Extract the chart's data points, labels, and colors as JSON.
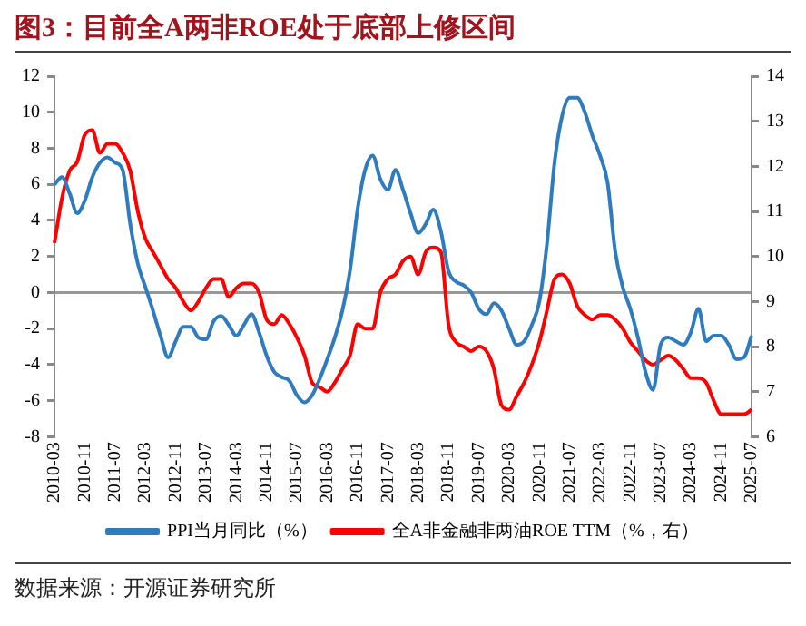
{
  "chart_data": {
    "type": "line",
    "title": "图3：目前全A两非ROE处于底部上修区间",
    "annotations": [
      "数据来源：开源证券研究所"
    ],
    "categories": [
      "2010-03",
      null,
      null,
      null,
      "2010-11",
      null,
      null,
      null,
      "2011-07",
      null,
      null,
      null,
      "2012-03",
      null,
      null,
      null,
      "2012-11",
      null,
      null,
      null,
      "2013-07",
      null,
      null,
      null,
      "2014-03",
      null,
      null,
      null,
      "2014-11",
      null,
      null,
      null,
      "2015-07",
      null,
      null,
      null,
      "2016-03",
      null,
      null,
      null,
      "2016-11",
      null,
      null,
      null,
      "2017-07",
      null,
      null,
      null,
      "2018-03",
      null,
      null,
      null,
      "2018-11",
      null,
      null,
      null,
      "2019-07",
      null,
      null,
      null,
      "2020-03",
      null,
      null,
      null,
      "2020-11",
      null,
      null,
      null,
      "2021-07",
      null,
      null,
      null,
      "2022-03",
      null,
      null,
      null,
      "2022-11",
      null,
      null,
      null,
      "2023-07",
      null,
      null,
      null,
      "2024-03",
      null,
      null,
      null,
      "2024-11",
      null,
      null,
      null,
      "2025-07"
    ],
    "series": [
      {
        "name": "PPI当月同比（%）",
        "color": "#2e7bbf",
        "values": [
          6.0,
          6.4,
          5.5,
          4.4,
          5.1,
          6.4,
          7.2,
          7.5,
          7.2,
          6.8,
          3.8,
          1.6,
          0.3,
          -1.0,
          -2.4,
          -3.6,
          -2.7,
          -1.9,
          -1.9,
          -2.5,
          -2.6,
          -1.6,
          -1.3,
          -1.8,
          -2.4,
          -1.8,
          -1.2,
          -2.2,
          -3.5,
          -4.4,
          -4.7,
          -4.9,
          -5.7,
          -6.1,
          -5.7,
          -4.8,
          -3.7,
          -2.5,
          -1.0,
          1.2,
          4.6,
          6.8,
          7.6,
          6.3,
          5.7,
          6.8,
          5.7,
          4.4,
          3.3,
          3.8,
          4.6,
          3.4,
          1.2,
          0.6,
          0.4,
          0.0,
          -0.9,
          -1.2,
          -0.6,
          -1.0,
          -2.0,
          -2.9,
          -2.7,
          -1.8,
          -0.5,
          2.7,
          7.2,
          9.8,
          10.8,
          10.8,
          10.0,
          8.7,
          7.6,
          6.1,
          2.3,
          0.3,
          -0.9,
          -2.5,
          -4.4,
          -5.4,
          -2.9,
          -2.5,
          -2.7,
          -2.9,
          -2.2,
          -0.9,
          -2.7,
          -2.4,
          -2.4,
          -2.9,
          -3.7,
          -3.6,
          -2.4
        ]
      },
      {
        "name": "全A非金融非两油ROE TTM（%，右）",
        "color": "#ff0000",
        "axis": "y2",
        "values": [
          10.3,
          11.3,
          11.9,
          12.1,
          12.7,
          12.8,
          12.3,
          12.5,
          12.5,
          12.3,
          11.9,
          11.0,
          10.4,
          10.1,
          9.8,
          9.5,
          9.3,
          9.0,
          8.8,
          9.0,
          9.3,
          9.5,
          9.5,
          9.1,
          9.3,
          9.4,
          9.4,
          9.2,
          8.6,
          8.5,
          8.7,
          8.5,
          8.2,
          7.8,
          7.2,
          7.1,
          7.0,
          7.2,
          7.5,
          7.8,
          8.5,
          8.4,
          8.4,
          9.2,
          9.5,
          9.6,
          9.9,
          10.0,
          9.6,
          10.1,
          10.2,
          10.1,
          8.5,
          8.1,
          8.0,
          7.9,
          8.0,
          7.9,
          7.5,
          6.7,
          6.6,
          6.9,
          7.2,
          7.6,
          8.1,
          8.8,
          9.5,
          9.6,
          9.4,
          8.9,
          8.7,
          8.6,
          8.7,
          8.7,
          8.6,
          8.4,
          8.1,
          7.9,
          7.7,
          7.6,
          7.7,
          7.8,
          7.7,
          7.5,
          7.3,
          7.3,
          7.2,
          6.8,
          6.5,
          6.5,
          6.5,
          6.5,
          6.6
        ]
      }
    ],
    "ylim": [
      -8,
      12
    ],
    "yticks": [
      -8,
      -6,
      -4,
      -2,
      0,
      2,
      4,
      6,
      8,
      10,
      12
    ],
    "y2lim": [
      6,
      14
    ],
    "y2ticks": [
      6,
      7,
      8,
      9,
      10,
      11,
      12,
      13,
      14
    ],
    "legend": "bottom",
    "marker": "none",
    "line_style": "solid"
  }
}
